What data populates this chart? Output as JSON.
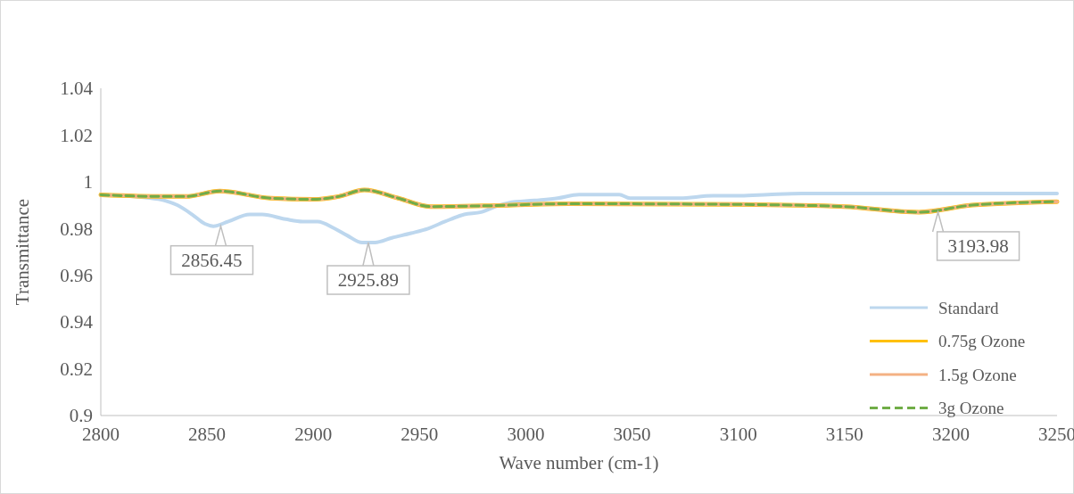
{
  "chart_data": {
    "type": "line",
    "xlabel": "Wave number (cm-1)",
    "ylabel": "Transmittance",
    "xlim": [
      2800,
      3250
    ],
    "xticks": [
      2800,
      2850,
      2900,
      2950,
      3000,
      3050,
      3100,
      3150,
      3200,
      3250
    ],
    "ylim": [
      0.9,
      1.04
    ],
    "yticks": [
      0.9,
      0.92,
      0.94,
      0.96,
      0.98,
      1,
      1.02,
      1.04
    ],
    "grid": false,
    "legend": "bottom right",
    "series": [
      {
        "name": "Standard",
        "color": "#bdd7ee",
        "line_style": "solid",
        "x": [
          2800,
          2822,
          2830,
          2836,
          2843,
          2849,
          2853,
          2860,
          2870,
          2876,
          2887,
          2895,
          2902,
          2910,
          2916,
          2923,
          2929,
          2937,
          2946,
          2954,
          2962,
          2971,
          2979,
          2986,
          2992,
          3004,
          3015,
          3025,
          3036,
          3044,
          3049,
          3055,
          3072,
          3088,
          3101,
          3114,
          3130,
          3170,
          3210,
          3250
        ],
        "values": [
          0.9944,
          0.9932,
          0.992,
          0.99,
          0.986,
          0.982,
          0.981,
          0.983,
          0.986,
          0.986,
          0.984,
          0.983,
          0.983,
          0.98,
          0.977,
          0.974,
          0.974,
          0.976,
          0.978,
          0.98,
          0.983,
          0.986,
          0.987,
          0.9895,
          0.991,
          0.992,
          0.993,
          0.9945,
          0.9945,
          0.9945,
          0.993,
          0.993,
          0.993,
          0.994,
          0.994,
          0.9945,
          0.995,
          0.995,
          0.995,
          0.995
        ]
      },
      {
        "name": "0.75g Ozone",
        "color": "#ffc000",
        "line_style": "solid",
        "x": [
          2800,
          2830,
          2840,
          2856,
          2880,
          2900,
          2912,
          2924,
          2940,
          2955,
          2980,
          3020,
          3100,
          3150,
          3185,
          3210,
          3250
        ],
        "values": [
          0.9944,
          0.9937,
          0.9937,
          0.996,
          0.993,
          0.9925,
          0.9937,
          0.9965,
          0.993,
          0.9894,
          0.9897,
          0.9906,
          0.9903,
          0.9894,
          0.987,
          0.99,
          0.9915
        ]
      },
      {
        "name": "1.5g Ozone",
        "color": "#f4b183",
        "line_style": "solid",
        "x": [
          2800,
          2830,
          2840,
          2856,
          2880,
          2900,
          2912,
          2924,
          2940,
          2955,
          2980,
          3020,
          3100,
          3150,
          3185,
          3210,
          3250
        ],
        "values": [
          0.9944,
          0.9937,
          0.9937,
          0.996,
          0.993,
          0.9925,
          0.9937,
          0.9965,
          0.993,
          0.9894,
          0.9897,
          0.9906,
          0.9903,
          0.9894,
          0.987,
          0.99,
          0.9915
        ]
      },
      {
        "name": "3g Ozone",
        "color": "#70ad47",
        "line_style": "dashed",
        "x": [
          2800,
          2830,
          2840,
          2856,
          2880,
          2900,
          2912,
          2924,
          2940,
          2955,
          2980,
          3020,
          3100,
          3150,
          3185,
          3210,
          3250
        ],
        "values": [
          0.9944,
          0.9937,
          0.9937,
          0.996,
          0.993,
          0.9925,
          0.9937,
          0.9965,
          0.993,
          0.9894,
          0.9897,
          0.9906,
          0.9903,
          0.9894,
          0.987,
          0.99,
          0.9915
        ]
      }
    ],
    "annotations": [
      {
        "text": "2856.45",
        "x": 2856.45,
        "y": 0.981
      },
      {
        "text": "2925.89",
        "x": 2925.89,
        "y": 0.974
      },
      {
        "text": "3193.98",
        "x": 3193.98,
        "y": 0.987
      }
    ]
  }
}
